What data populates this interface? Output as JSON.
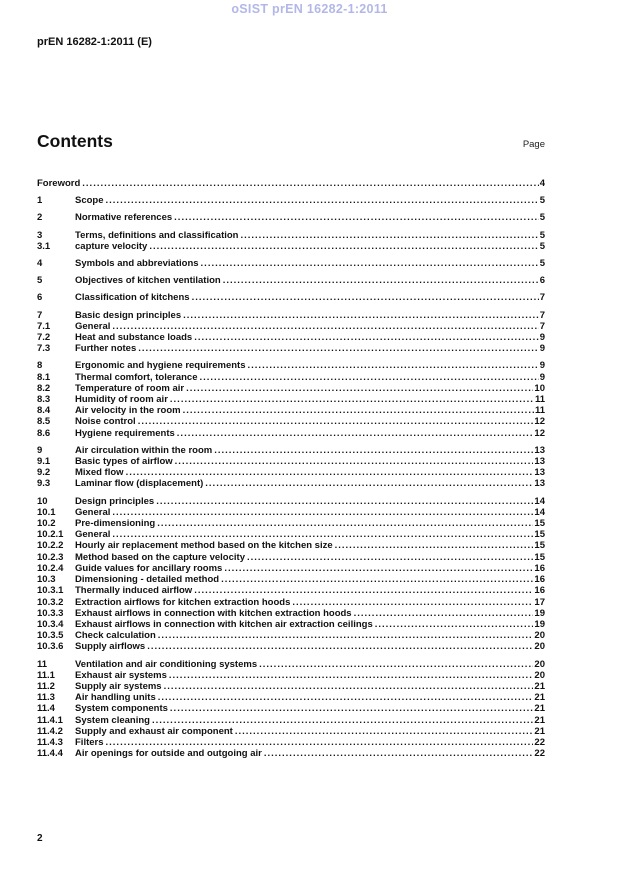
{
  "watermark": "oSIST prEN 16282-1:2011",
  "header": {
    "document_id": "prEN 16282-1:2011 (E)"
  },
  "contents": {
    "title": "Contents",
    "page_label": "Page"
  },
  "footer": {
    "page_number": "2"
  },
  "toc": {
    "groups": [
      {
        "entries": [
          {
            "num": "",
            "title": "Foreword",
            "page": "4"
          }
        ]
      },
      {
        "entries": [
          {
            "num": "1",
            "title": "Scope",
            "page": "5"
          }
        ]
      },
      {
        "entries": [
          {
            "num": "2",
            "title": "Normative references",
            "page": "5"
          }
        ]
      },
      {
        "entries": [
          {
            "num": "3",
            "title": "Terms, definitions and classification",
            "page": "5"
          },
          {
            "num": "3.1",
            "title": "capture velocity",
            "page": "5"
          }
        ]
      },
      {
        "entries": [
          {
            "num": "4",
            "title": "Symbols and abbreviations",
            "page": "5"
          }
        ]
      },
      {
        "entries": [
          {
            "num": "5",
            "title": "Objectives of kitchen ventilation",
            "page": "6"
          }
        ]
      },
      {
        "entries": [
          {
            "num": "6",
            "title": "Classification of kitchens",
            "page": "7"
          }
        ]
      },
      {
        "entries": [
          {
            "num": "7",
            "title": "Basic design principles",
            "page": "7"
          },
          {
            "num": "7.1",
            "title": "General",
            "page": "7"
          },
          {
            "num": "7.2",
            "title": "Heat and substance loads",
            "page": "9"
          },
          {
            "num": "7.3",
            "title": "Further notes",
            "page": "9"
          }
        ]
      },
      {
        "entries": [
          {
            "num": "8",
            "title": "Ergonomic and hygiene requirements",
            "page": "9"
          },
          {
            "num": "8.1",
            "title": "Thermal comfort, tolerance",
            "page": "9"
          },
          {
            "num": "8.2",
            "title": "Temperature of room air",
            "page": "10"
          },
          {
            "num": "8.3",
            "title": "Humidity of room air",
            "page": "11"
          },
          {
            "num": "8.4",
            "title": "Air velocity in the room",
            "page": "11"
          },
          {
            "num": "8.5",
            "title": "Noise control",
            "page": "12"
          },
          {
            "num": "8.6",
            "title": "Hygiene requirements",
            "page": "12"
          }
        ]
      },
      {
        "entries": [
          {
            "num": "9",
            "title": "Air circulation within the room",
            "page": "13"
          },
          {
            "num": "9.1",
            "title": "Basic types of airflow",
            "page": "13"
          },
          {
            "num": "9.2",
            "title": "Mixed flow",
            "page": "13"
          },
          {
            "num": "9.3",
            "title": "Laminar flow (displacement)",
            "page": "13"
          }
        ]
      },
      {
        "entries": [
          {
            "num": "10",
            "title": "Design principles",
            "page": "14"
          },
          {
            "num": "10.1",
            "title": "General",
            "page": "14"
          },
          {
            "num": "10.2",
            "title": "Pre-dimensioning",
            "page": "15"
          },
          {
            "num": "10.2.1",
            "title": "General",
            "page": "15"
          },
          {
            "num": "10.2.2",
            "title": "Hourly air replacement method based on the kitchen size",
            "page": "15"
          },
          {
            "num": "10.2.3",
            "title": "Method based on the capture velocity",
            "page": "15"
          },
          {
            "num": "10.2.4",
            "title": "Guide values for ancillary rooms",
            "page": "16"
          },
          {
            "num": "10.3",
            "title": "Dimensioning - detailed method",
            "page": "16"
          },
          {
            "num": "10.3.1",
            "title": "Thermally induced airflow",
            "page": "16"
          },
          {
            "num": "10.3.2",
            "title": "Extraction airflows for kitchen extraction hoods",
            "page": "17"
          },
          {
            "num": "10.3.3",
            "title": "Exhaust airflows in connection with kitchen extraction hoods",
            "page": "19"
          },
          {
            "num": "10.3.4",
            "title": "Exhaust airflows in connection with kitchen air extraction ceilings",
            "page": "19"
          },
          {
            "num": "10.3.5",
            "title": "Check calculation",
            "page": "20"
          },
          {
            "num": "10.3.6",
            "title": "Supply airflows",
            "page": "20"
          }
        ]
      },
      {
        "entries": [
          {
            "num": "11",
            "title": "Ventilation and air conditioning systems",
            "page": "20"
          },
          {
            "num": "11.1",
            "title": "Exhaust air systems",
            "page": "20"
          },
          {
            "num": "11.2",
            "title": "Supply air systems",
            "page": "21"
          },
          {
            "num": "11.3",
            "title": "Air handling units",
            "page": "21"
          },
          {
            "num": "11.4",
            "title": "System components",
            "page": "21"
          },
          {
            "num": "11.4.1",
            "title": "System cleaning",
            "page": "21"
          },
          {
            "num": "11.4.2",
            "title": "Supply and exhaust air component",
            "page": "21"
          },
          {
            "num": "11.4.3",
            "title": "Filters",
            "page": "22"
          },
          {
            "num": "11.4.4",
            "title": "Air openings for outside and outgoing air",
            "page": "22"
          }
        ]
      }
    ]
  }
}
